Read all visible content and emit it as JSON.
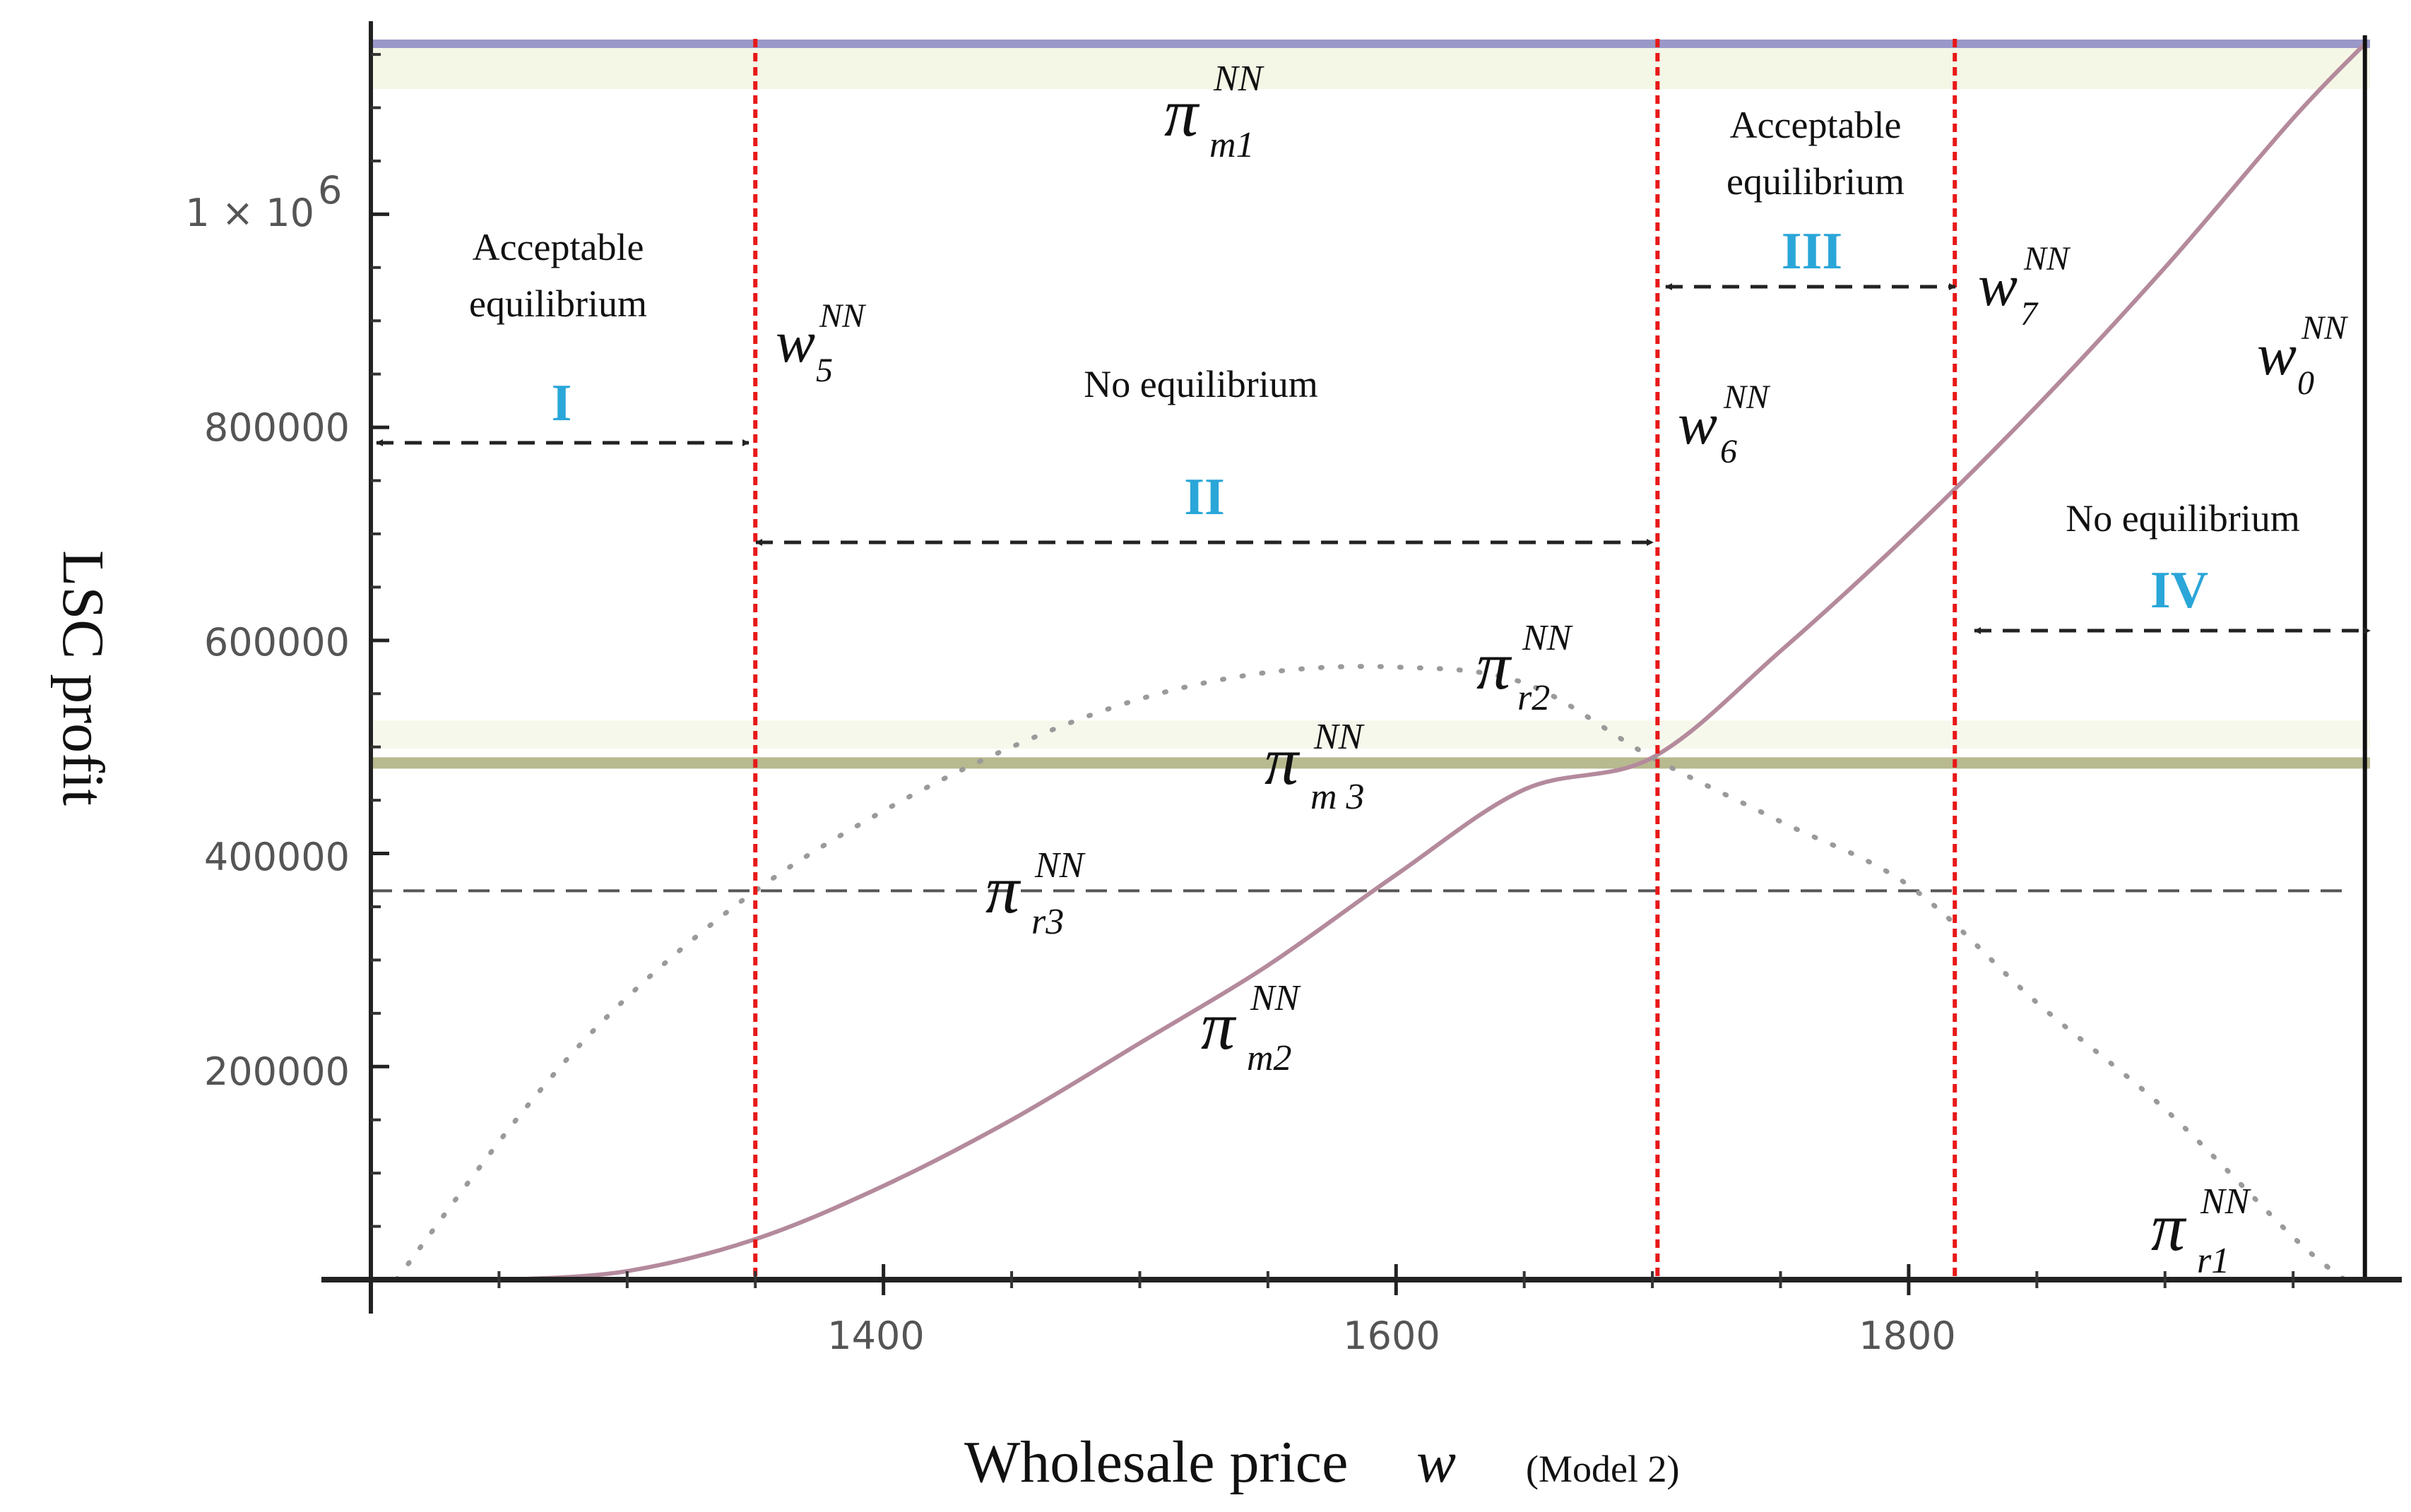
{
  "chart_data": {
    "type": "line",
    "title": "",
    "xlabel": "Wholesale price",
    "xlabel_symbol": "w",
    "xlabel_note": "(Model 2)",
    "ylabel": "LSC  profit",
    "xlim": [
      1200,
      1980
    ],
    "ylim": [
      0,
      1160000
    ],
    "x_ticks": [
      1400,
      1600,
      1800
    ],
    "x_tick_labels": [
      "1400",
      "1600",
      "1800"
    ],
    "y_ticks": [
      200000,
      400000,
      600000,
      800000,
      1000000
    ],
    "y_tick_labels": [
      "200000",
      "400000",
      "600000",
      "800000",
      "1 × 10"
    ],
    "y_tick_exponent": "6",
    "series": [
      {
        "name": "π_m1^NN",
        "style": "solid",
        "color": "#9a98c9",
        "x": [
          1200,
          1980
        ],
        "values": [
          1160000,
          1160000
        ]
      },
      {
        "name": "π_m3^NN",
        "style": "solid",
        "color": "#b7b98f",
        "x": [
          1200,
          1980
        ],
        "values": [
          485000,
          485000
        ]
      },
      {
        "name": "π_r3^NN",
        "style": "dashed",
        "color": "#555555",
        "x": [
          1200,
          1970
        ],
        "values": [
          365000,
          365000
        ]
      },
      {
        "name": "π_m2^NN",
        "style": "solid",
        "color": "#b48a9c",
        "x": [
          1255,
          1300,
          1350,
          1400,
          1450,
          1500,
          1550,
          1600,
          1650,
          1700,
          1750,
          1800,
          1850,
          1900,
          1950,
          1978
        ],
        "values": [
          0,
          8000,
          38000,
          88000,
          150000,
          222000,
          295000,
          380000,
          460000,
          490000,
          590000,
          700000,
          820000,
          950000,
          1090000,
          1160000
        ]
      },
      {
        "name": "π_r2^NN",
        "style": "dotted",
        "color": "#9a9a9a",
        "x": [
          1210,
          1260,
          1300,
          1350,
          1400,
          1450,
          1500,
          1550,
          1600,
          1650,
          1700,
          1750,
          1800,
          1850,
          1900,
          1950,
          1970
        ],
        "values": [
          0,
          160000,
          265000,
          365000,
          440000,
          500000,
          545000,
          570000,
          575000,
          560000,
          490000,
          430000,
          370000,
          260000,
          160000,
          40000,
          0
        ]
      }
    ],
    "vertical_lines": [
      {
        "name": "w_5^NN",
        "x": 1350
      },
      {
        "name": "w_6^NN",
        "x": 1702
      },
      {
        "name": "w_7^NN",
        "x": 1818
      },
      {
        "name": "w_0^NN",
        "x": 1978
      }
    ],
    "curve_labels": {
      "pi": "π",
      "sup": "NN",
      "m1": "m1",
      "m3": "m 3",
      "r3": "r3",
      "m2": "m2",
      "r2": "r2",
      "r1": "r1"
    },
    "wall_labels": {
      "w": "w",
      "sup": "NN",
      "w5": "5",
      "w6": "6",
      "w7": "7",
      "w0": "0"
    },
    "regions": [
      {
        "numeral": "I",
        "text_line1": "Acceptable",
        "text_line2": "equilibrium"
      },
      {
        "numeral": "II",
        "text_line1": "No equilibrium",
        "text_line2": ""
      },
      {
        "numeral": "III",
        "text_line1": "Acceptable",
        "text_line2": "equilibrium"
      },
      {
        "numeral": "IV",
        "text_line1": "No equilibrium",
        "text_line2": ""
      }
    ]
  }
}
